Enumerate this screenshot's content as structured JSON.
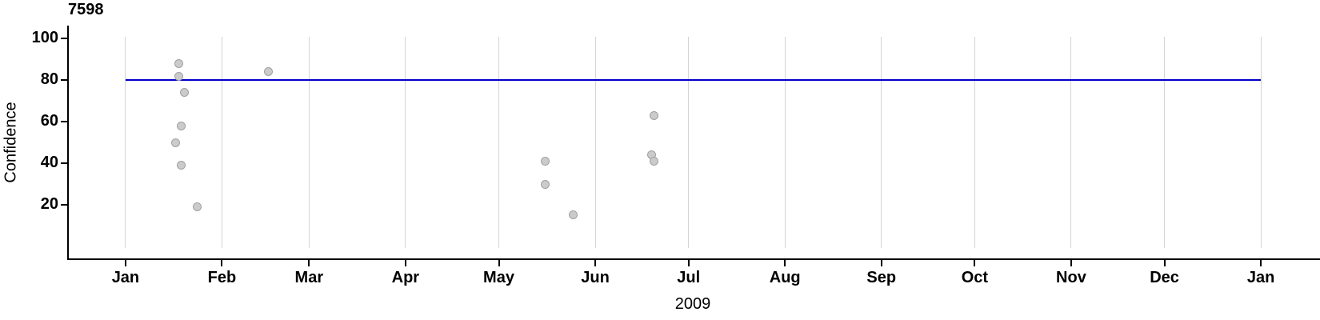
{
  "chart_data": {
    "type": "scatter",
    "title": "7598",
    "xlabel": "2009",
    "ylabel": "Confidence",
    "x_axis": {
      "tick_labels": [
        "Jan",
        "Feb",
        "Mar",
        "Apr",
        "May",
        "Jun",
        "Jul",
        "Aug",
        "Sep",
        "Oct",
        "Nov",
        "Dec",
        "Jan"
      ],
      "tick_days": [
        0,
        31,
        59,
        90,
        120,
        151,
        181,
        212,
        243,
        273,
        304,
        334,
        365
      ],
      "xlim_days": [
        -18.5,
        384
      ],
      "grid": "vertical-lines-at-month-starts"
    },
    "y_axis": {
      "ticks": [
        20,
        40,
        60,
        80,
        100
      ],
      "ylim": [
        -6.2,
        106.3
      ]
    },
    "legend": "none",
    "reference_line": {
      "value": 80,
      "span_days": [
        0,
        365
      ],
      "color": "#0000cc"
    },
    "points": [
      {
        "day_of_year": 17,
        "confidence": 88
      },
      {
        "day_of_year": 17,
        "confidence": 82
      },
      {
        "day_of_year": 19,
        "confidence": 74
      },
      {
        "day_of_year": 18,
        "confidence": 58
      },
      {
        "day_of_year": 16,
        "confidence": 50
      },
      {
        "day_of_year": 18,
        "confidence": 39
      },
      {
        "day_of_year": 23,
        "confidence": 19
      },
      {
        "day_of_year": 46,
        "confidence": 84
      },
      {
        "day_of_year": 135,
        "confidence": 41
      },
      {
        "day_of_year": 135,
        "confidence": 30
      },
      {
        "day_of_year": 144,
        "confidence": 15
      },
      {
        "day_of_year": 170,
        "confidence": 63
      },
      {
        "day_of_year": 169,
        "confidence": 44
      },
      {
        "day_of_year": 170,
        "confidence": 41
      }
    ],
    "colors": {
      "point_fill": "#cbcbcb",
      "point_stroke": "#a0a0a0",
      "gridline": "#d4d4d4",
      "axis": "#000000",
      "reference_line": "#0000cc"
    }
  }
}
